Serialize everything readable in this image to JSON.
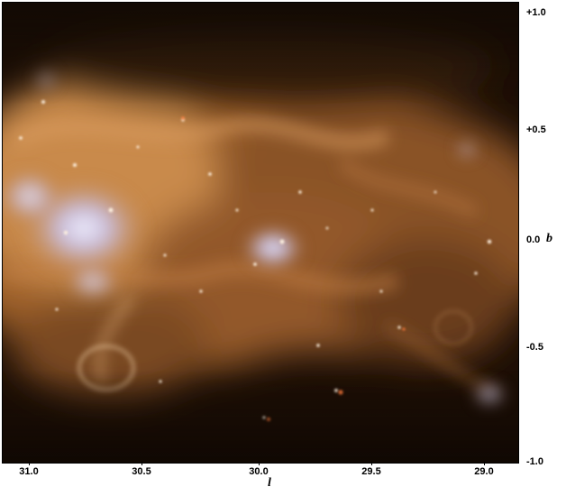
{
  "axes": {
    "latitude_symbol": "b",
    "longitude_symbol": "l",
    "latitude_ticks": [
      "+1.0",
      "+0.5",
      "0.0",
      "-0.5",
      "-1.0"
    ],
    "longitude_ticks": [
      "31.0",
      "30.5",
      "30.0",
      "29.5",
      "29.0"
    ]
  },
  "image": {
    "subject": "infrared-nebula-galactic-plane",
    "palette": {
      "background": "#1c0e05",
      "dust": "#b8743a",
      "bright_dust": "#e0a56a",
      "hot_region": "#d8d8ff"
    }
  }
}
